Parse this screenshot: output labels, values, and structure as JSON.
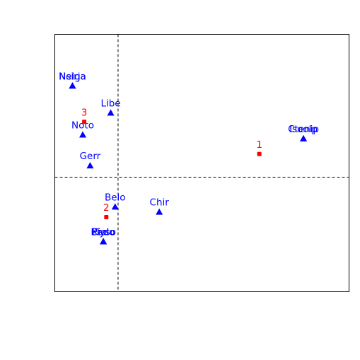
{
  "chart_data": {
    "type": "scatter",
    "title": "",
    "xlabel": "",
    "ylabel": "",
    "xlim": [
      0,
      100
    ],
    "ylim": [
      0,
      100
    ],
    "grid": false,
    "reference_lines": {
      "x": 21.5,
      "y": 44.5
    },
    "colors": {
      "species": "#0000ff",
      "site": "#ff0000"
    },
    "series": [
      {
        "marker": "triangle",
        "points": [
          {
            "label": "Nelga",
            "x": 6.0,
            "y": 80.0
          },
          {
            "label": "Nsirja",
            "x": 6.0,
            "y": 80.0
          },
          {
            "label": "Libe",
            "x": 19.0,
            "y": 69.5
          },
          {
            "label": "Noto",
            "x": 9.5,
            "y": 61.0
          },
          {
            "label": "Gerr",
            "x": 12.0,
            "y": 49.0
          },
          {
            "label": "Ctenip",
            "x": 84.5,
            "y": 59.5
          },
          {
            "label": "Isoolp",
            "x": 84.5,
            "y": 59.5
          },
          {
            "label": "Belo",
            "x": 20.5,
            "y": 33.0
          },
          {
            "label": "Chir",
            "x": 35.5,
            "y": 31.0
          },
          {
            "label": "Elyso",
            "x": 16.5,
            "y": 19.5
          },
          {
            "label": "Kiolo",
            "x": 16.5,
            "y": 19.5
          },
          {
            "label": "Pedo",
            "x": 16.5,
            "y": 19.5
          }
        ]
      },
      {
        "marker": "circle",
        "points": [
          {
            "label": "1",
            "x": 69.5,
            "y": 53.5
          },
          {
            "label": "2",
            "x": 17.5,
            "y": 29.0
          },
          {
            "label": "3",
            "x": 10.0,
            "y": 66.0
          }
        ]
      }
    ]
  }
}
